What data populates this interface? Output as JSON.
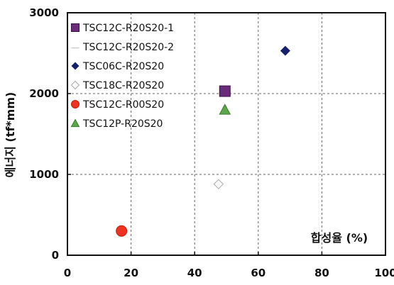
{
  "chart_data": {
    "type": "scatter",
    "xlabel": "합성율 (%)",
    "ylabel": "에너지 (tf*mm)",
    "xlim": [
      0,
      100
    ],
    "ylim": [
      0,
      3000
    ],
    "x_ticks": [
      "0",
      "20",
      "40",
      "60",
      "80",
      "100"
    ],
    "y_ticks": [
      "0",
      "1000",
      "2000",
      "3000"
    ],
    "grid": "dashed",
    "legend_position": "top-left",
    "series": [
      {
        "name": "TSC12C-R20S20-1",
        "marker": "square",
        "color": "#6a2c7a",
        "points": [
          {
            "x": 49.5,
            "y": 2030
          }
        ]
      },
      {
        "name": "TSC12C-R20S20-2",
        "marker": "none",
        "color": "#bbbbbb",
        "points": []
      },
      {
        "name": "TSC06C-R20S20",
        "marker": "diamond",
        "color": "#16216b",
        "points": [
          {
            "x": 68.5,
            "y": 2530
          }
        ]
      },
      {
        "name": "TSC18C-R20S20",
        "marker": "diamond-open",
        "color": "#aaaaaa",
        "points": [
          {
            "x": 47.5,
            "y": 880
          }
        ]
      },
      {
        "name": "TSC12C-R00S20",
        "marker": "circle",
        "color": "#ee3322",
        "points": [
          {
            "x": 17.0,
            "y": 300
          }
        ]
      },
      {
        "name": "TSC12P-R20S20",
        "marker": "triangle",
        "color": "#5aa848",
        "points": [
          {
            "x": 49.5,
            "y": 1800
          }
        ]
      }
    ]
  }
}
